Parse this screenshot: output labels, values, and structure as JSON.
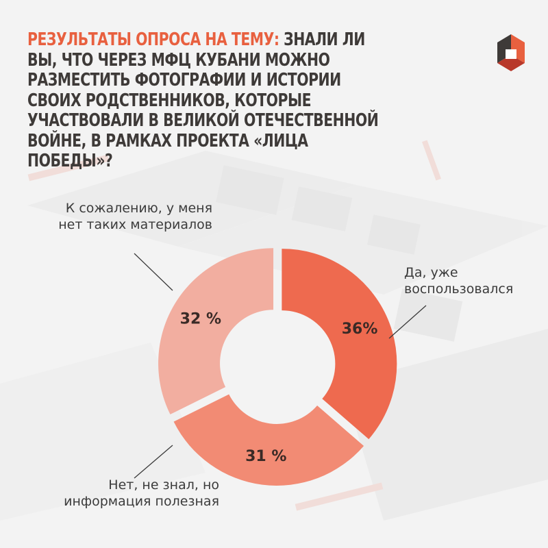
{
  "title_highlight": "Результаты опроса на тему:",
  "title_rest": "знали ли вы, что через МФЦ Кубани можно разместить фотографии и истории своих родственников, которые участвовали в Великой Отечественной войне, в рамках проекта «Лица Победы»?",
  "colors": {
    "accent": "#e8603f",
    "slice_a": "#ee6a4f",
    "slice_b": "#f28b74",
    "slice_c": "#f2aea0",
    "text": "#3e3a38"
  },
  "chart_data": {
    "type": "pie",
    "donut": true,
    "title": "",
    "categories": [
      "Да, уже воспользовался",
      "Нет, не знал, но информация полезная",
      "К сожалению, у меня нет таких материалов"
    ],
    "values": [
      36,
      31,
      32
    ],
    "value_labels": [
      "36%",
      "31 %",
      "32 %"
    ],
    "labels": [
      {
        "line1": "Да, уже",
        "line2": "воспользовался"
      },
      {
        "line1": "Нет, не знал, но",
        "line2": "информация полезная"
      },
      {
        "line1": "К сожалению, у меня",
        "line2": "нет таких материалов"
      }
    ]
  }
}
